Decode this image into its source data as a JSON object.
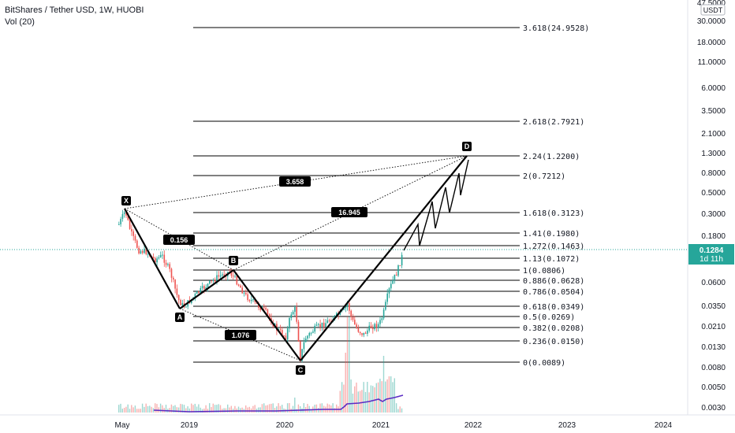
{
  "header": {
    "title": "BitShares / Tether USD, 1W, HUOBI",
    "indicator": "Vol (20)"
  },
  "price_axis": {
    "currency": "USDT",
    "ticks": [
      "47.5000",
      "30.0000",
      "18.0000",
      "11.0000",
      "6.0000",
      "3.5000",
      "2.1000",
      "1.3000",
      "0.8000",
      "0.5000",
      "0.3000",
      "0.1800",
      "0.0600",
      "0.0350",
      "0.0210",
      "0.0130",
      "0.0080",
      "0.0050",
      "0.0030"
    ],
    "current_price": "0.1284",
    "countdown": "1d 11h"
  },
  "time_axis": {
    "ticks": [
      "May",
      "2019",
      "2020",
      "2021",
      "2022",
      "2023",
      "2024"
    ]
  },
  "fib_levels": [
    "3.618(24.9528)",
    "2.618(2.7921)",
    "2.24(1.2200)",
    "2(0.7212)",
    "1.618(0.3123)",
    "1.41(0.1980)",
    "1.272(0.1463)",
    "1.13(0.1072)",
    "1(0.0806)",
    "0.886(0.0628)",
    "0.786(0.0504)",
    "0.618(0.0349)",
    "0.5(0.0269)",
    "0.382(0.0208)",
    "0.236(0.0150)",
    "0(0.0089)"
  ],
  "pattern_points": [
    "X",
    "A",
    "B",
    "C",
    "D"
  ],
  "ratios": [
    "0.156",
    "3.658",
    "16.945",
    "1.076"
  ],
  "colors": {
    "up": "#26a69a",
    "down": "#ef5350",
    "price_line": "#26a69a",
    "volume_ma": "#5b2cc4",
    "pattern": "#000000"
  }
}
